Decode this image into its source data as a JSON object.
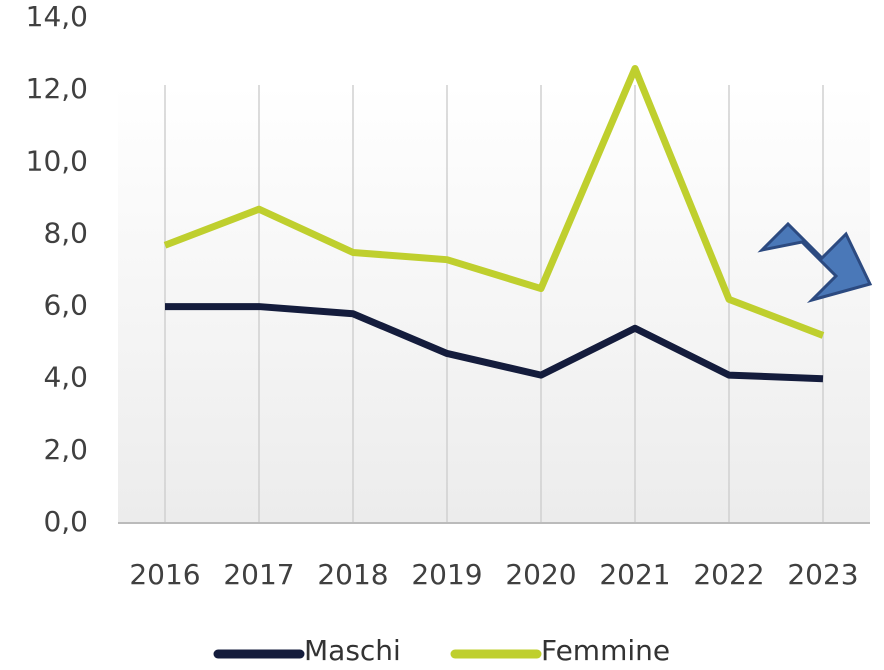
{
  "chart_data": {
    "type": "line",
    "categories": [
      "2016",
      "2017",
      "2018",
      "2019",
      "2020",
      "2021",
      "2022",
      "2023"
    ],
    "series": [
      {
        "name": "Maschi",
        "color": "#141c3c",
        "values": [
          6.0,
          6.0,
          5.8,
          4.7,
          4.1,
          5.4,
          4.1,
          4.0
        ]
      },
      {
        "name": "Femmine",
        "color": "#bfcf2e",
        "values": [
          7.7,
          8.7,
          7.5,
          7.3,
          6.5,
          12.6,
          6.2,
          5.2
        ]
      }
    ],
    "ylim": [
      0,
      14
    ],
    "yticks": [
      {
        "value": 0,
        "label": "0,0"
      },
      {
        "value": 2,
        "label": "2,0"
      },
      {
        "value": 4,
        "label": "4,0"
      },
      {
        "value": 6,
        "label": "6,0"
      },
      {
        "value": 8,
        "label": "8,0"
      },
      {
        "value": 10,
        "label": "10,0"
      },
      {
        "value": 12,
        "label": "12,0"
      },
      {
        "value": 14,
        "label": "14,0"
      }
    ],
    "grid": true,
    "legend": "bottom"
  }
}
